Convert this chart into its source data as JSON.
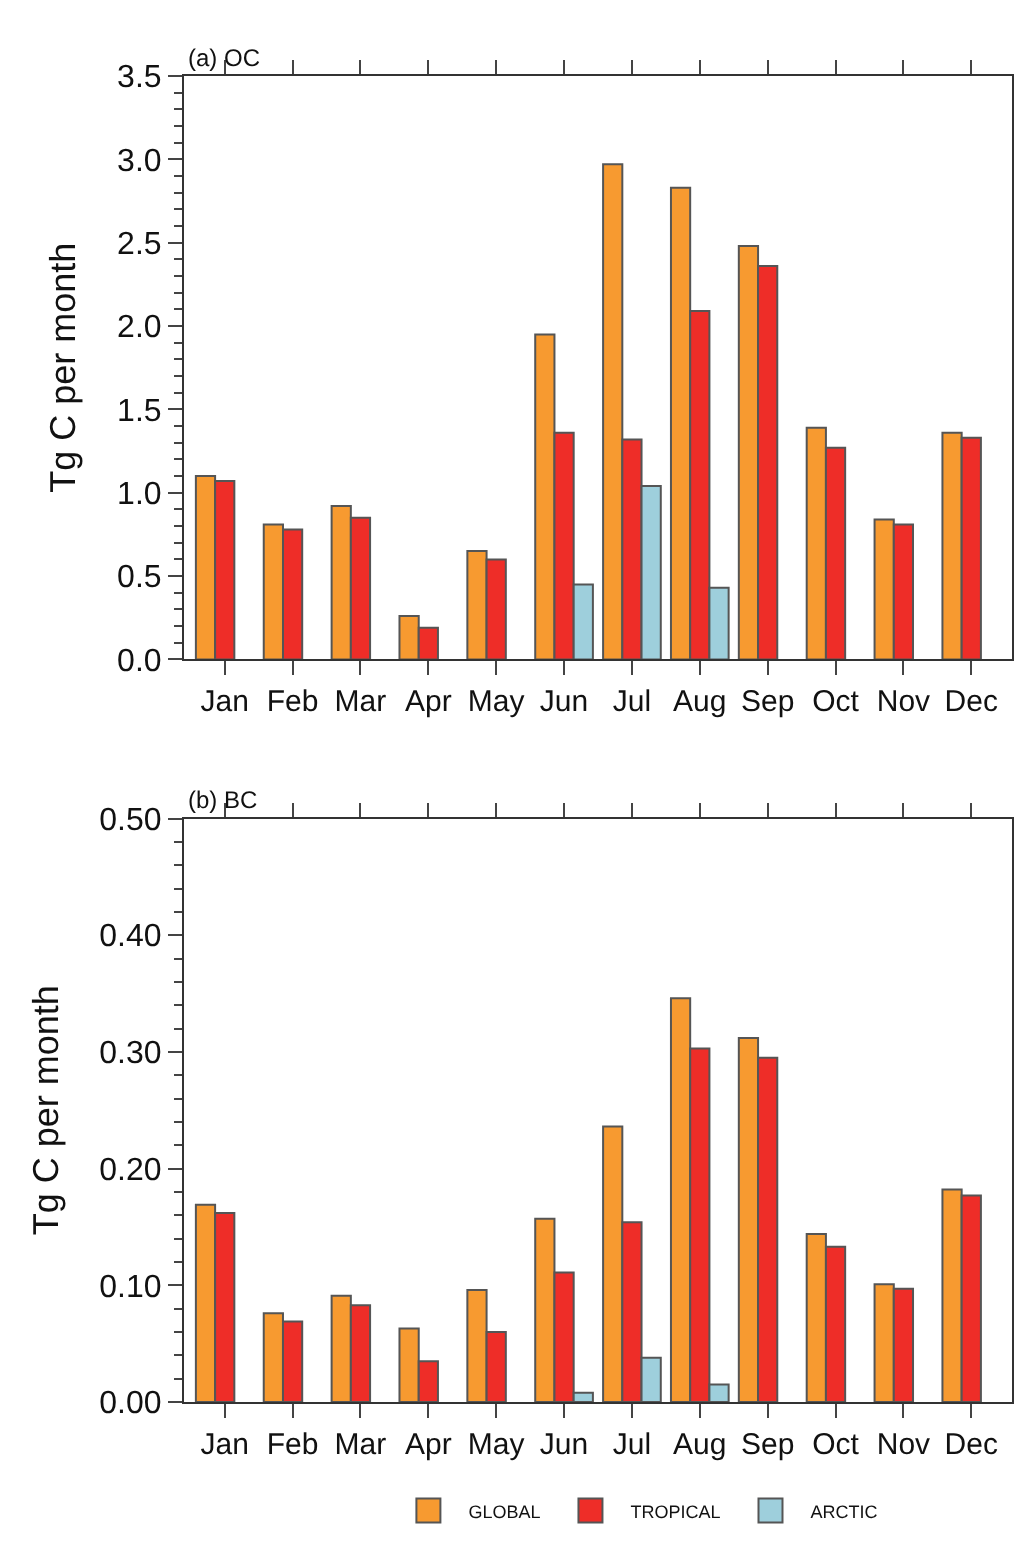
{
  "chart_data": [
    {
      "type": "bar",
      "title": "(a) OC",
      "ylabel": "Tg C per month",
      "categories": [
        "Jan",
        "Feb",
        "Mar",
        "Apr",
        "May",
        "Jun",
        "Jul",
        "Aug",
        "Sep",
        "Oct",
        "Nov",
        "Dec"
      ],
      "series": [
        {
          "name": "GLOBAL",
          "color": "#f79a30",
          "values": [
            1.1,
            0.81,
            0.92,
            0.26,
            0.65,
            1.95,
            2.97,
            2.83,
            2.48,
            1.39,
            0.84,
            1.36
          ]
        },
        {
          "name": "TROPICAL",
          "color": "#ee2d28",
          "values": [
            1.07,
            0.78,
            0.85,
            0.19,
            0.6,
            1.36,
            1.32,
            2.09,
            2.36,
            1.27,
            0.81,
            1.33
          ]
        },
        {
          "name": "ARCTIC",
          "color": "#9ecfdc",
          "values": [
            null,
            null,
            null,
            null,
            null,
            0.45,
            1.04,
            0.43,
            null,
            null,
            null,
            null
          ]
        }
      ],
      "ylim": [
        0,
        3.5
      ],
      "yticks": [
        {
          "value": 0,
          "label": "0.0"
        },
        {
          "value": 0.1,
          "label": null
        },
        {
          "value": 0.2,
          "label": null
        },
        {
          "value": 0.3,
          "label": null
        },
        {
          "value": 0.4,
          "label": null
        },
        {
          "value": 0.5,
          "label": "0.5"
        },
        {
          "value": 0.6,
          "label": null
        },
        {
          "value": 0.7,
          "label": null
        },
        {
          "value": 0.8,
          "label": null
        },
        {
          "value": 0.9,
          "label": null
        },
        {
          "value": 1.0,
          "label": "1.0"
        },
        {
          "value": 1.1,
          "label": null
        },
        {
          "value": 1.2,
          "label": null
        },
        {
          "value": 1.3,
          "label": null
        },
        {
          "value": 1.4,
          "label": null
        },
        {
          "value": 1.5,
          "label": "1.5"
        },
        {
          "value": 1.6,
          "label": null
        },
        {
          "value": 1.7,
          "label": null
        },
        {
          "value": 1.8,
          "label": null
        },
        {
          "value": 1.9,
          "label": null
        },
        {
          "value": 2.0,
          "label": "2.0"
        },
        {
          "value": 2.1,
          "label": null
        },
        {
          "value": 2.2,
          "label": null
        },
        {
          "value": 2.3,
          "label": null
        },
        {
          "value": 2.4,
          "label": null
        },
        {
          "value": 2.5,
          "label": "2.5"
        },
        {
          "value": 2.6,
          "label": null
        },
        {
          "value": 2.7,
          "label": null
        },
        {
          "value": 2.8,
          "label": null
        },
        {
          "value": 2.9,
          "label": null
        },
        {
          "value": 3.0,
          "label": "3.0"
        },
        {
          "value": 3.1,
          "label": null
        },
        {
          "value": 3.2,
          "label": null
        },
        {
          "value": 3.3,
          "label": null
        },
        {
          "value": 3.4,
          "label": null
        },
        {
          "value": 3.5,
          "label": "3.5"
        }
      ],
      "legend": "bottom"
    },
    {
      "type": "bar",
      "title": "(b) BC",
      "ylabel": "Tg C per month",
      "categories": [
        "Jan",
        "Feb",
        "Mar",
        "Apr",
        "May",
        "Jun",
        "Jul",
        "Aug",
        "Sep",
        "Oct",
        "Nov",
        "Dec"
      ],
      "series": [
        {
          "name": "GLOBAL",
          "color": "#f79a30",
          "values": [
            0.169,
            0.076,
            0.091,
            0.063,
            0.096,
            0.157,
            0.236,
            0.346,
            0.312,
            0.144,
            0.101,
            0.182
          ]
        },
        {
          "name": "TROPICAL",
          "color": "#ee2d28",
          "values": [
            0.162,
            0.069,
            0.083,
            0.035,
            0.06,
            0.111,
            0.154,
            0.303,
            0.295,
            0.133,
            0.097,
            0.177
          ]
        },
        {
          "name": "ARCTIC",
          "color": "#9ecfdc",
          "values": [
            null,
            null,
            null,
            null,
            null,
            0.008,
            0.038,
            0.015,
            null,
            null,
            null,
            null
          ]
        }
      ],
      "ylim": [
        0,
        0.5
      ],
      "yticks": [
        {
          "value": 0,
          "label": "0.00"
        },
        {
          "value": 0.02,
          "label": null
        },
        {
          "value": 0.04,
          "label": null
        },
        {
          "value": 0.06,
          "label": null
        },
        {
          "value": 0.08,
          "label": null
        },
        {
          "value": 0.1,
          "label": "0.10"
        },
        {
          "value": 0.12,
          "label": null
        },
        {
          "value": 0.14,
          "label": null
        },
        {
          "value": 0.16,
          "label": null
        },
        {
          "value": 0.18,
          "label": null
        },
        {
          "value": 0.2,
          "label": "0.20"
        },
        {
          "value": 0.22,
          "label": null
        },
        {
          "value": 0.24,
          "label": null
        },
        {
          "value": 0.26,
          "label": null
        },
        {
          "value": 0.28,
          "label": null
        },
        {
          "value": 0.3,
          "label": "0.30"
        },
        {
          "value": 0.32,
          "label": null
        },
        {
          "value": 0.34,
          "label": null
        },
        {
          "value": 0.36,
          "label": null
        },
        {
          "value": 0.38,
          "label": null
        },
        {
          "value": 0.4,
          "label": "0.40"
        },
        {
          "value": 0.42,
          "label": null
        },
        {
          "value": 0.44,
          "label": null
        },
        {
          "value": 0.46,
          "label": null
        },
        {
          "value": 0.48,
          "label": null
        },
        {
          "value": 0.5,
          "label": "0.50"
        }
      ],
      "legend": "bottom"
    }
  ]
}
